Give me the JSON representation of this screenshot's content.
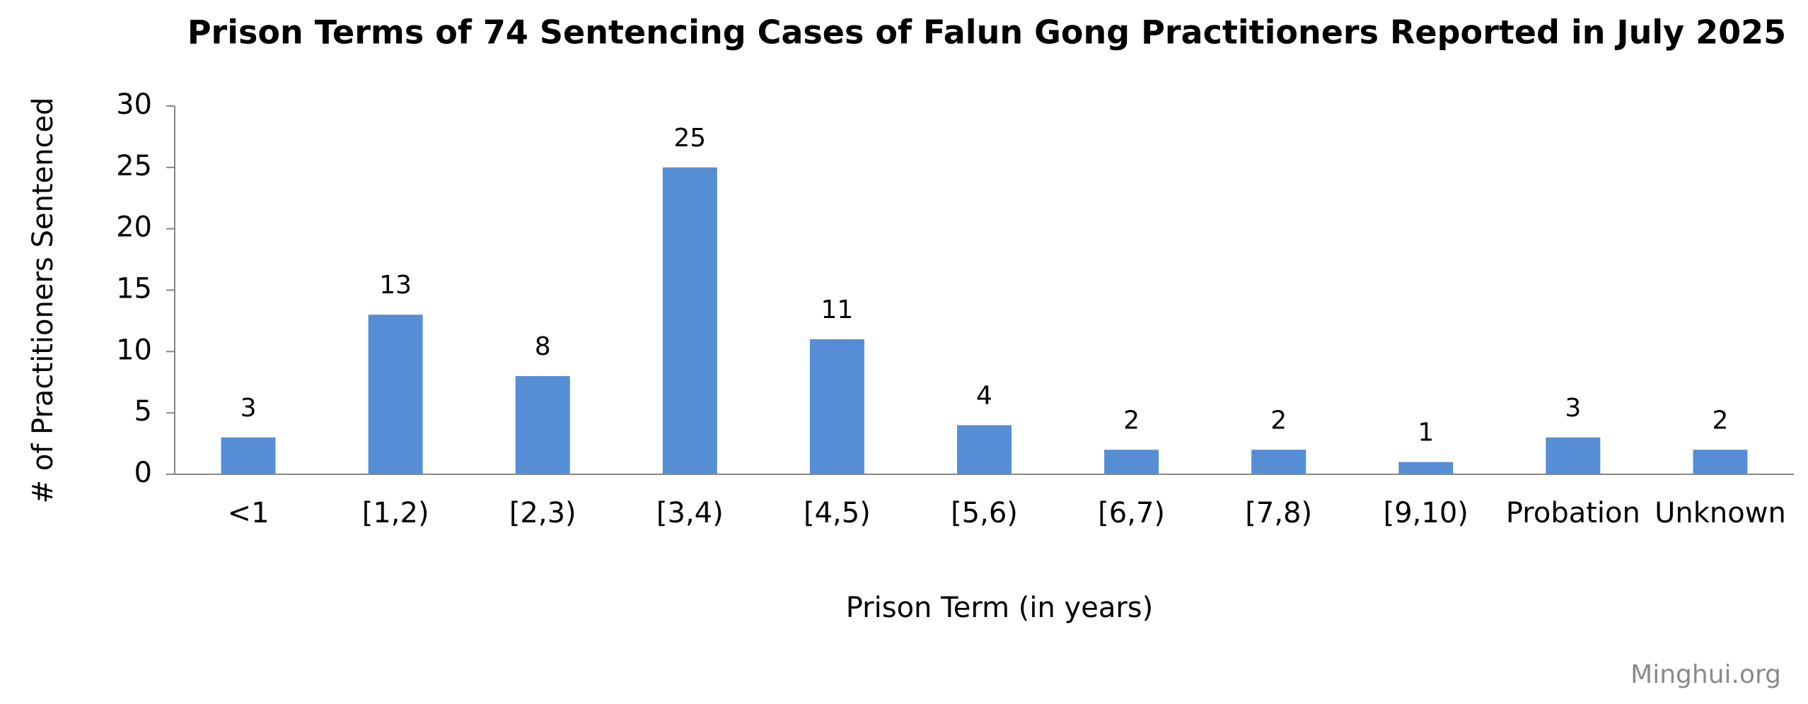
{
  "chart_data": {
    "type": "bar",
    "title": "Prison Terms of 74 Sentencing Cases of Falun Gong Practitioners Reported in July 2025",
    "x_label": "Prison Term (in years)",
    "y_label": "# of Practitioners Sentenced",
    "watermark": "Minghui.org",
    "categories": [
      "<1",
      "[1,2)",
      "[2,3)",
      "[3,4)",
      "[4,5)",
      "[5,6)",
      "[6,7)",
      "[7,8)",
      "[9,10)",
      "Probation",
      "Unknown"
    ],
    "values": [
      3,
      13,
      8,
      25,
      11,
      4,
      2,
      2,
      1,
      3,
      2
    ],
    "color": "#558ed5",
    "ylim": [
      0,
      30
    ],
    "yticks": [
      0,
      5,
      10,
      15,
      20,
      25,
      30
    ],
    "grid": false
  }
}
